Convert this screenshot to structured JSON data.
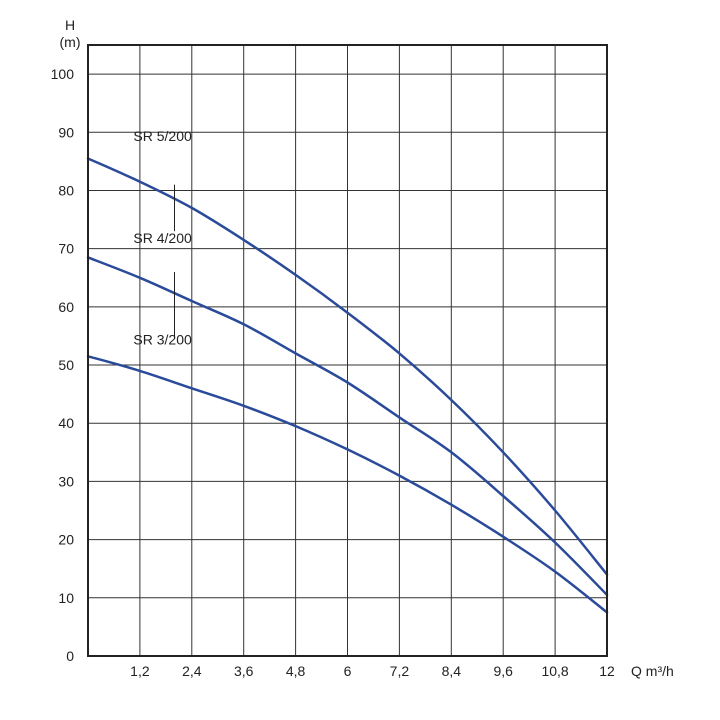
{
  "chart_data": {
    "type": "line",
    "title": "",
    "xlabel": "Q m³/h",
    "ylabel_line1": "H",
    "ylabel_line2": "(m)",
    "xlim": [
      0,
      12
    ],
    "ylim": [
      0,
      105
    ],
    "grid": true,
    "x_ticks": [
      1.2,
      2.4,
      3.6,
      4.8,
      6,
      7.2,
      8.4,
      9.6,
      10.8,
      12
    ],
    "x_tick_labels": [
      "1,2",
      "2,4",
      "3,6",
      "4,8",
      "6",
      "7,2",
      "8,4",
      "9,6",
      "10,8",
      "12"
    ],
    "y_ticks": [
      0,
      10,
      20,
      30,
      40,
      50,
      60,
      70,
      80,
      90,
      100
    ],
    "y_tick_labels": [
      "0",
      "10",
      "20",
      "30",
      "40",
      "50",
      "60",
      "70",
      "80",
      "90",
      "100"
    ],
    "colors": {
      "series": "#2a4a9a",
      "grid": "#333333",
      "frame": "#222222"
    },
    "series": [
      {
        "name": "SR 5/200",
        "x": [
          0,
          1.2,
          2.4,
          3.6,
          4.8,
          6,
          7.2,
          8.4,
          9.6,
          10.8,
          12
        ],
        "y": [
          85.5,
          81.5,
          77,
          71.5,
          65.5,
          59,
          52,
          44,
          35,
          25,
          14
        ]
      },
      {
        "name": "SR 4/200",
        "x": [
          0,
          1.2,
          2.4,
          3.6,
          4.8,
          6,
          7.2,
          8.4,
          9.6,
          10.8,
          12
        ],
        "y": [
          68.5,
          65,
          61,
          57,
          52,
          47,
          41,
          35,
          27.5,
          19.5,
          10.5
        ]
      },
      {
        "name": "SR 3/200",
        "x": [
          0,
          1.2,
          2.4,
          3.6,
          4.8,
          6,
          7.2,
          8.4,
          9.6,
          10.8,
          12
        ],
        "y": [
          51.5,
          49,
          46,
          43,
          39.5,
          35.5,
          31,
          26,
          20.5,
          14.5,
          7.5
        ]
      }
    ]
  }
}
